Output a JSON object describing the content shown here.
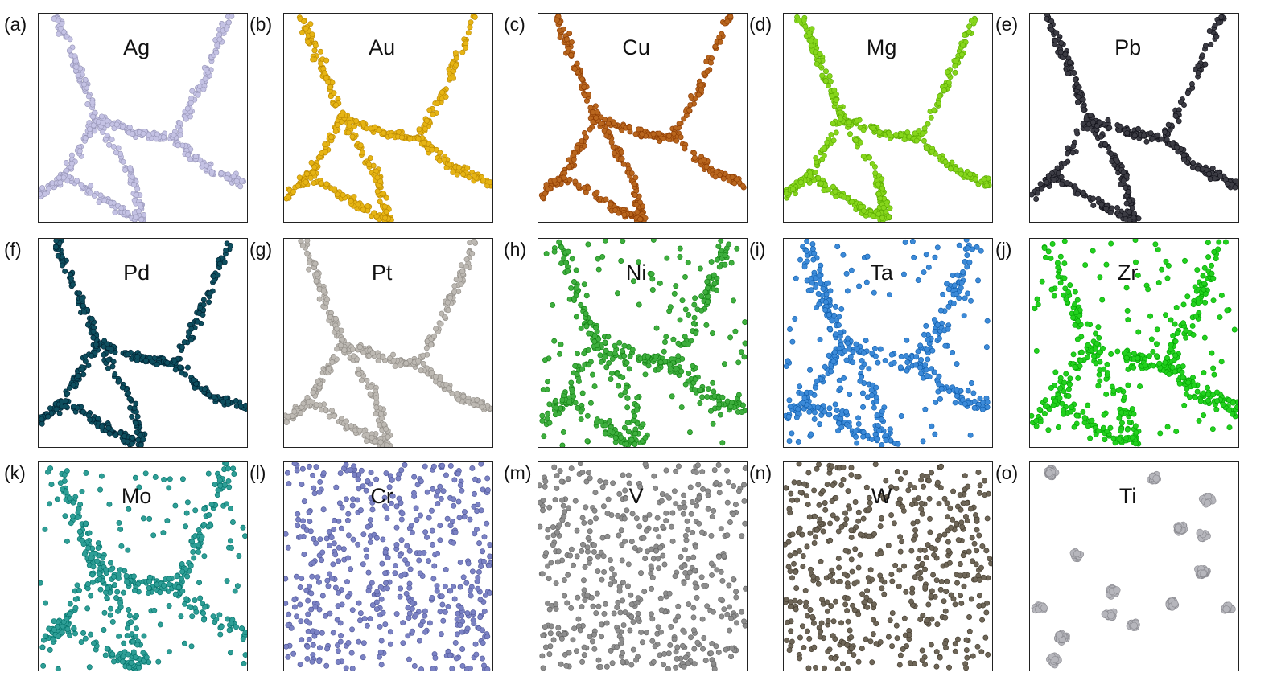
{
  "panels": [
    {
      "id": "a",
      "letter": "(a)",
      "element": "Ag",
      "color": "#c4c2e4",
      "pattern": "network"
    },
    {
      "id": "b",
      "letter": "(b)",
      "element": "Au",
      "color": "#e6b414",
      "pattern": "network"
    },
    {
      "id": "c",
      "letter": "(c)",
      "element": "Cu",
      "color": "#b8661e",
      "pattern": "network"
    },
    {
      "id": "d",
      "letter": "(d)",
      "element": "Mg",
      "color": "#86d61c",
      "pattern": "network"
    },
    {
      "id": "e",
      "letter": "(e)",
      "element": "Pb",
      "color": "#3c3c44",
      "pattern": "network"
    },
    {
      "id": "f",
      "letter": "(f)",
      "element": "Pd",
      "color": "#0e4e5e",
      "pattern": "network"
    },
    {
      "id": "g",
      "letter": "(g)",
      "element": "Pt",
      "color": "#bdb9b3",
      "pattern": "network"
    },
    {
      "id": "h",
      "letter": "(h)",
      "element": "Ni",
      "color": "#3eae3e",
      "pattern": "network-diffuse"
    },
    {
      "id": "i",
      "letter": "(i)",
      "element": "Ta",
      "color": "#3c8ad8",
      "pattern": "network-diffuse"
    },
    {
      "id": "j",
      "letter": "(j)",
      "element": "Zr",
      "color": "#22d01e",
      "pattern": "network-diffuse"
    },
    {
      "id": "k",
      "letter": "(k)",
      "element": "Mo",
      "color": "#2e9e96",
      "pattern": "network-diffuse"
    },
    {
      "id": "l",
      "letter": "(l)",
      "element": "Cr",
      "color": "#7b82c4",
      "pattern": "random"
    },
    {
      "id": "m",
      "letter": "(m)",
      "element": "V",
      "color": "#8e8e8e",
      "pattern": "random"
    },
    {
      "id": "n",
      "letter": "(n)",
      "element": "W",
      "color": "#6e6658",
      "pattern": "random"
    },
    {
      "id": "o",
      "letter": "(o)",
      "element": "Ti",
      "color": "#b6b6bc",
      "pattern": "clusters"
    }
  ]
}
